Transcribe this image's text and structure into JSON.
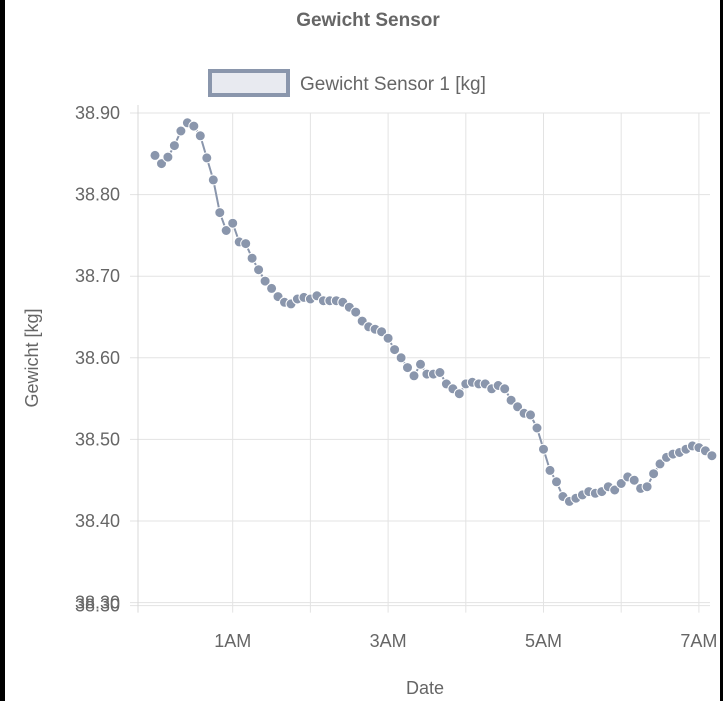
{
  "chart_data": {
    "type": "line",
    "title": "Gewicht Sensor",
    "xlabel": "Date",
    "ylabel": "Gewicht [kg]",
    "ylim": [
      38.3,
      38.9
    ],
    "y_ticks": [
      "38.90",
      "38.80",
      "38.70",
      "38.60",
      "38.50",
      "38.40",
      "38.30",
      "38.30"
    ],
    "x_ticks": [
      "1AM",
      "3AM",
      "5AM",
      "7AM"
    ],
    "grid": true,
    "legend_position": "top",
    "series": [
      {
        "name": "Gewicht Sensor 1 [kg]",
        "color": "#8a96ac",
        "fill": "#e8eaf0",
        "x": [
          "00:00",
          "00:05",
          "00:10",
          "00:15",
          "00:20",
          "00:25",
          "00:30",
          "00:35",
          "00:40",
          "00:45",
          "00:50",
          "00:55",
          "01:00",
          "01:05",
          "01:10",
          "01:15",
          "01:20",
          "01:25",
          "01:30",
          "01:35",
          "01:40",
          "01:45",
          "01:50",
          "01:55",
          "02:00",
          "02:05",
          "02:10",
          "02:15",
          "02:20",
          "02:25",
          "02:30",
          "02:35",
          "02:40",
          "02:45",
          "02:50",
          "02:55",
          "03:00",
          "03:05",
          "03:10",
          "03:15",
          "03:20",
          "03:25",
          "03:30",
          "03:35",
          "03:40",
          "03:45",
          "03:50",
          "03:55",
          "04:00",
          "04:05",
          "04:10",
          "04:15",
          "04:20",
          "04:25",
          "04:30",
          "04:35",
          "04:40",
          "04:45",
          "04:50",
          "04:55",
          "05:00",
          "05:05",
          "05:10",
          "05:15",
          "05:20",
          "05:25",
          "05:30",
          "05:35",
          "05:40",
          "05:45",
          "05:50",
          "05:55",
          "06:00",
          "06:05",
          "06:10",
          "06:15",
          "06:20",
          "06:25",
          "06:30",
          "06:35",
          "06:40",
          "06:45",
          "06:50",
          "06:55",
          "07:00",
          "07:05",
          "07:10"
        ],
        "values": [
          38.848,
          38.838,
          38.846,
          38.86,
          38.878,
          38.888,
          38.884,
          38.872,
          38.845,
          38.818,
          38.778,
          38.756,
          38.765,
          38.742,
          38.74,
          38.722,
          38.708,
          38.694,
          38.685,
          38.675,
          38.668,
          38.666,
          38.672,
          38.674,
          38.672,
          38.676,
          38.67,
          38.67,
          38.67,
          38.668,
          38.662,
          38.656,
          38.645,
          38.638,
          38.635,
          38.632,
          38.624,
          38.61,
          38.6,
          38.588,
          38.578,
          38.592,
          38.58,
          38.58,
          38.582,
          38.568,
          38.562,
          38.556,
          38.568,
          38.57,
          38.568,
          38.568,
          38.562,
          38.566,
          38.562,
          38.548,
          38.54,
          38.532,
          38.53,
          38.514,
          38.488,
          38.462,
          38.448,
          38.43,
          38.424,
          38.428,
          38.432,
          38.436,
          38.434,
          38.436,
          38.442,
          38.438,
          38.446,
          38.454,
          38.45,
          38.44,
          38.442,
          38.458,
          38.47,
          38.478,
          38.482,
          38.484,
          38.488,
          38.492,
          38.49,
          38.486,
          38.48
        ]
      }
    ]
  }
}
